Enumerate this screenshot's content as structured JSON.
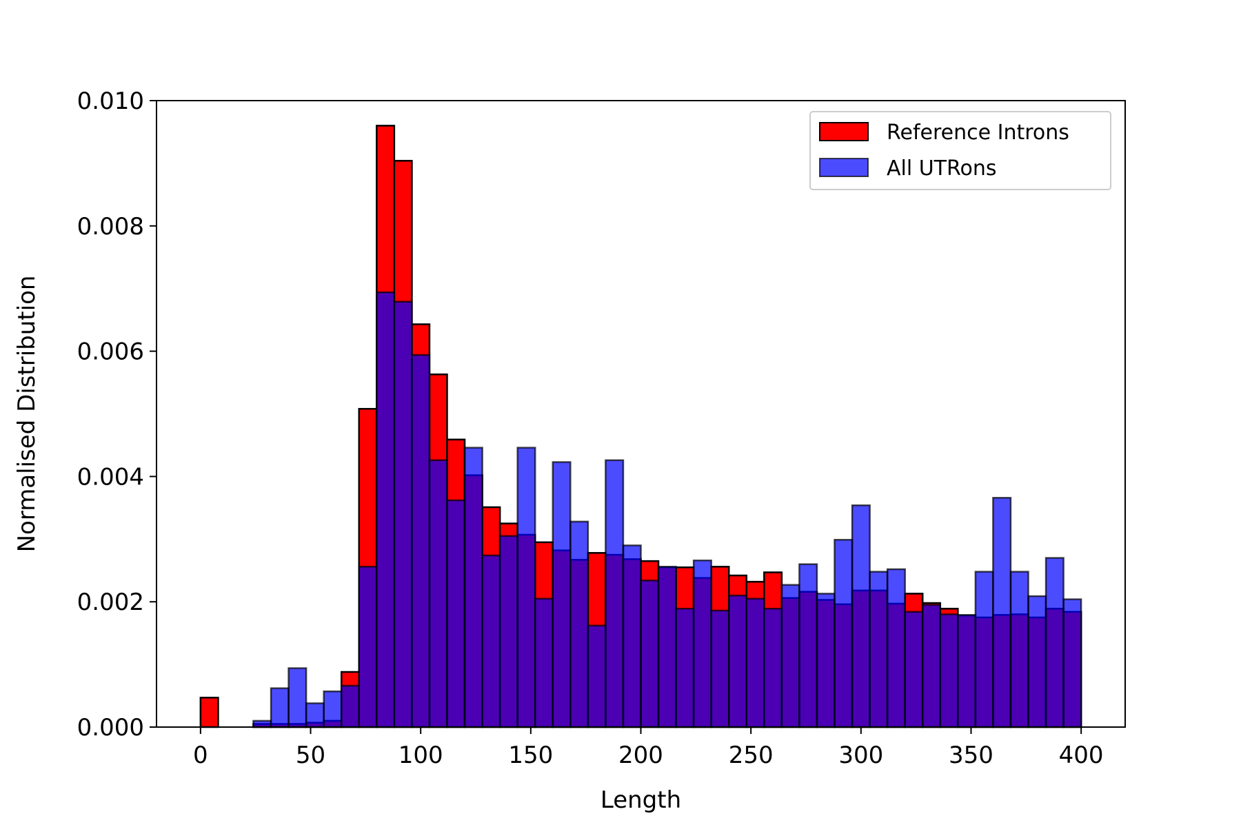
{
  "chart_data": {
    "type": "bar",
    "title": "",
    "xlabel": "Length",
    "ylabel": "Normalised Distribution",
    "xlim": [
      -20,
      420
    ],
    "ylim": [
      0,
      0.01
    ],
    "bin_width": 8,
    "x_ticks": [
      0,
      50,
      100,
      150,
      200,
      250,
      300,
      350,
      400
    ],
    "x_tick_labels": [
      "0",
      "50",
      "100",
      "150",
      "200",
      "250",
      "300",
      "350",
      "400"
    ],
    "y_ticks": [
      0,
      0.002,
      0.004,
      0.006,
      0.008,
      0.01
    ],
    "y_tick_labels": [
      "0.000",
      "0.002",
      "0.004",
      "0.006",
      "0.008",
      "0.010"
    ],
    "grid": false,
    "legend_position": "top-right",
    "bin_starts": [
      0,
      8,
      16,
      24,
      32,
      40,
      48,
      56,
      64,
      72,
      80,
      88,
      96,
      104,
      112,
      120,
      128,
      136,
      144,
      152,
      160,
      168,
      176,
      184,
      192,
      200,
      208,
      216,
      224,
      232,
      240,
      248,
      256,
      264,
      272,
      280,
      288,
      296,
      304,
      312,
      320,
      328,
      336,
      344,
      352,
      360,
      368,
      376,
      384,
      392
    ],
    "series": [
      {
        "name": "Reference Introns",
        "color": "#ff0000",
        "opacity": 1.0,
        "values": [
          0.00047,
          0.0,
          0.0,
          5e-05,
          5e-05,
          5e-05,
          7e-05,
          0.0001,
          0.00088,
          0.00508,
          0.0096,
          0.00904,
          0.00643,
          0.00563,
          0.00459,
          0.00402,
          0.00351,
          0.00325,
          0.00307,
          0.00295,
          0.00282,
          0.00267,
          0.00278,
          0.00275,
          0.00268,
          0.00265,
          0.00255,
          0.00255,
          0.00238,
          0.00256,
          0.00242,
          0.00232,
          0.00247,
          0.00206,
          0.00216,
          0.00203,
          0.00196,
          0.00218,
          0.00218,
          0.00197,
          0.00213,
          0.00198,
          0.00189,
          0.00178,
          0.00175,
          0.00179,
          0.0018,
          0.00175,
          0.00189,
          0.00184
        ]
      },
      {
        "name": "All UTRons",
        "color": "#0000ff",
        "opacity": 0.7,
        "values": [
          0.0,
          0.0,
          0.0,
          0.0001,
          0.00062,
          0.00094,
          0.00038,
          0.00057,
          0.00066,
          0.00256,
          0.00694,
          0.00679,
          0.00594,
          0.00426,
          0.00362,
          0.00446,
          0.00274,
          0.00305,
          0.00446,
          0.00205,
          0.00423,
          0.00328,
          0.00162,
          0.00426,
          0.0029,
          0.00234,
          0.00256,
          0.00189,
          0.00266,
          0.00186,
          0.0021,
          0.00205,
          0.00189,
          0.00227,
          0.0026,
          0.00213,
          0.00299,
          0.00354,
          0.00248,
          0.00252,
          0.00184,
          0.00195,
          0.0018,
          0.00179,
          0.00248,
          0.00366,
          0.00248,
          0.00209,
          0.0027,
          0.00204
        ]
      }
    ]
  }
}
